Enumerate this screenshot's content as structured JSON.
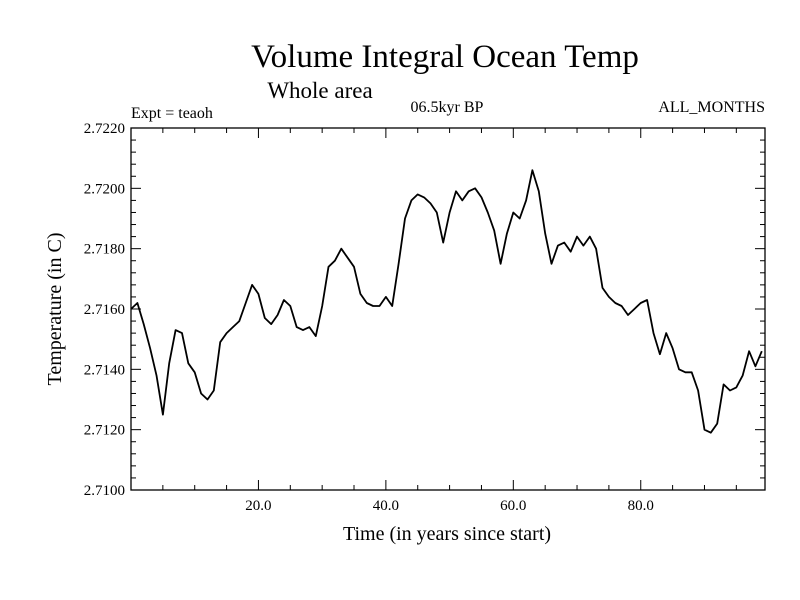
{
  "chart_data": {
    "type": "line",
    "title": "Volume Integral Ocean Temp",
    "subtitle": "Whole area",
    "expt_label": "Expt = teaoh",
    "period_label": "06.5kyr BP",
    "months_label": "ALL_MONTHS",
    "xlabel": "Time (in years since start)",
    "ylabel": "Temperature (in C)",
    "xlim": [
      0,
      99.5
    ],
    "ylim": [
      2.71,
      2.722
    ],
    "x_ticks": [
      20,
      40,
      60,
      80
    ],
    "x_tick_labels": [
      "20.0",
      "40.0",
      "60.0",
      "80.0"
    ],
    "y_ticks": [
      2.71,
      2.712,
      2.714,
      2.716,
      2.718,
      2.72,
      2.722
    ],
    "y_tick_labels": [
      "2.7100",
      "2.7120",
      "2.7140",
      "2.7160",
      "2.7180",
      "2.7200",
      "2.7220"
    ],
    "grid": false,
    "series": [
      {
        "name": "Volume Integral Ocean Temp",
        "color": "#000000",
        "x": [
          0,
          1,
          2,
          3,
          4,
          5,
          6,
          7,
          8,
          9,
          10,
          11,
          12,
          13,
          14,
          15,
          16,
          17,
          18,
          19,
          20,
          21,
          22,
          23,
          24,
          25,
          26,
          27,
          28,
          29,
          30,
          31,
          32,
          33,
          34,
          35,
          36,
          37,
          38,
          39,
          40,
          41,
          42,
          43,
          44,
          45,
          46,
          47,
          48,
          49,
          50,
          51,
          52,
          53,
          54,
          55,
          56,
          57,
          58,
          59,
          60,
          61,
          62,
          63,
          64,
          65,
          66,
          67,
          68,
          69,
          70,
          71,
          72,
          73,
          74,
          75,
          76,
          77,
          78,
          79,
          80,
          81,
          82,
          83,
          84,
          85,
          86,
          87,
          88,
          89,
          90,
          91,
          92,
          93,
          94,
          95,
          96,
          97,
          98,
          99
        ],
        "values": [
          2.716,
          2.7162,
          2.7155,
          2.7147,
          2.7138,
          2.7125,
          2.7142,
          2.7153,
          2.7152,
          2.7142,
          2.7139,
          2.7132,
          2.713,
          2.7133,
          2.7149,
          2.7152,
          2.7154,
          2.7156,
          2.7162,
          2.7168,
          2.7165,
          2.7157,
          2.7155,
          2.7158,
          2.7163,
          2.7161,
          2.7154,
          2.7153,
          2.7154,
          2.7151,
          2.7161,
          2.7174,
          2.7176,
          2.718,
          2.7177,
          2.7174,
          2.7165,
          2.7162,
          2.7161,
          2.7161,
          2.7164,
          2.7161,
          2.7175,
          2.719,
          2.7196,
          2.7198,
          2.7197,
          2.7195,
          2.7192,
          2.7182,
          2.7192,
          2.7199,
          2.7196,
          2.7199,
          2.72,
          2.7197,
          2.7192,
          2.7186,
          2.7175,
          2.7185,
          2.7192,
          2.719,
          2.7196,
          2.7206,
          2.7199,
          2.7185,
          2.7175,
          2.7181,
          2.7182,
          2.7179,
          2.7184,
          2.7181,
          2.7184,
          2.718,
          2.7167,
          2.7164,
          2.7162,
          2.7161,
          2.7158,
          2.716,
          2.7162,
          2.7163,
          2.7152,
          2.7145,
          2.7152,
          2.7147,
          2.714,
          2.7139,
          2.7139,
          2.7133,
          2.712,
          2.7119,
          2.7122,
          2.7135,
          2.7133,
          2.7134,
          2.7138,
          2.7146,
          2.7141,
          2.7146
        ]
      }
    ]
  }
}
